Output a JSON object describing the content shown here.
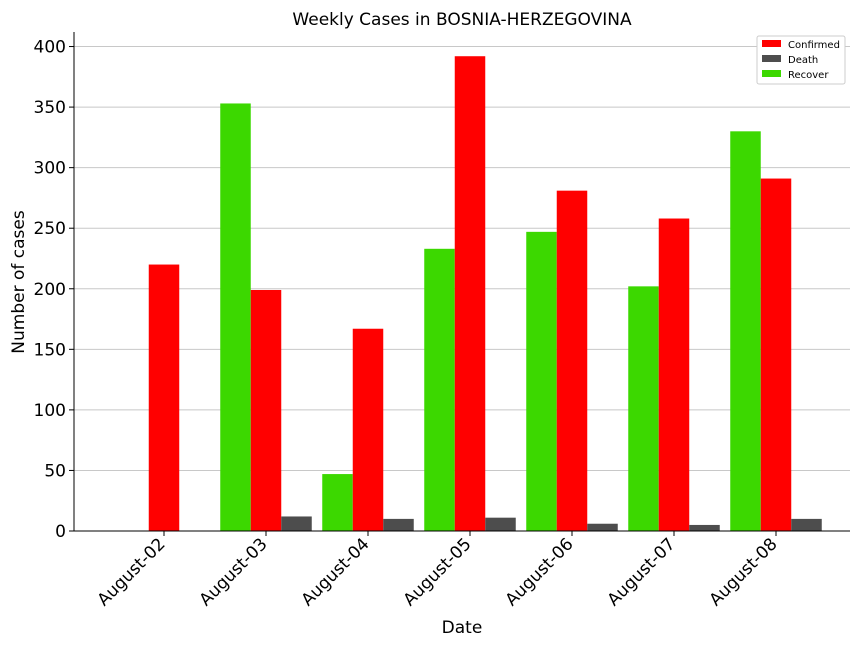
{
  "chart_data": {
    "type": "bar",
    "title": "Weekly Cases in BOSNIA-HERZEGOVINA",
    "xlabel": "Date",
    "ylabel": "Number of cases",
    "categories": [
      "August-02",
      "August-03",
      "August-04",
      "August-05",
      "August-06",
      "August-07",
      "August-08"
    ],
    "ylim": [
      0,
      412
    ],
    "yticks": [
      0,
      50,
      100,
      150,
      200,
      250,
      300,
      350,
      400
    ],
    "grid": "horizontal",
    "legend_position": "top-right",
    "series": [
      {
        "name": "Recover",
        "color": "#3cd800",
        "values": [
          0,
          353,
          47,
          233,
          247,
          202,
          330
        ]
      },
      {
        "name": "Confirmed",
        "color": "#ff0000",
        "values": [
          220,
          199,
          167,
          392,
          281,
          258,
          291
        ]
      },
      {
        "name": "Death",
        "color": "#4d4d4d",
        "values": [
          0,
          12,
          10,
          11,
          6,
          5,
          10
        ]
      }
    ],
    "legend_order": [
      "Confirmed",
      "Death",
      "Recover"
    ]
  }
}
